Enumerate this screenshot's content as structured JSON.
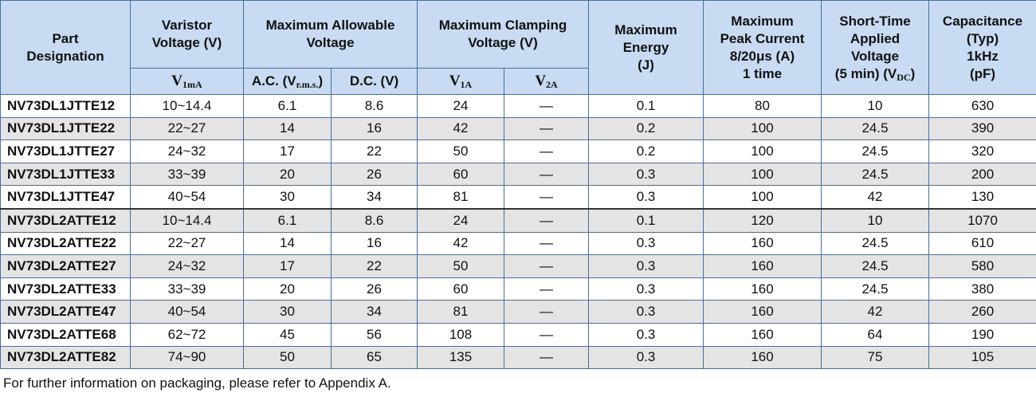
{
  "table": {
    "headers": [
      {
        "lines": [
          "Part",
          "Designation"
        ]
      },
      {
        "lines": [
          "Varistor",
          "Voltage (V)"
        ]
      },
      {
        "lines": [
          "Maximum Allowable",
          "Voltage"
        ]
      },
      {
        "lines": [
          "Maximum Clamping",
          "Voltage (V)"
        ]
      },
      {
        "lines": [
          "Maximum",
          "Energy",
          "(J)"
        ]
      },
      {
        "lines": [
          "Maximum",
          "Peak Current",
          "8/20μs (A)",
          "1 time"
        ]
      },
      {
        "lines": [
          "Short-Time",
          "Applied",
          "Voltage",
          {
            "text": "(5 min) (V",
            "sub": "DC",
            "after": ")"
          }
        ]
      },
      {
        "lines": [
          "Capacitance",
          "(Typ)",
          "1kHz",
          "(pF)"
        ]
      }
    ],
    "subheaders": [
      {
        "text": "V",
        "sub": "1mA"
      },
      {
        "text": "A.C. (V",
        "sub": "r.m.s.",
        "after": ")"
      },
      {
        "text": "D.C. (V)"
      },
      {
        "text": "V",
        "sub": "1A"
      },
      {
        "text": "V",
        "sub": "2A"
      }
    ],
    "row_groups": [
      [
        [
          "NV73DL1JTTE12",
          "10~14.4",
          "6.1",
          "8.6",
          "24",
          "—",
          "0.1",
          "80",
          "10",
          "630"
        ],
        [
          "NV73DL1JTTE22",
          "22~27",
          "14",
          "16",
          "42",
          "—",
          "0.2",
          "100",
          "24.5",
          "390"
        ],
        [
          "NV73DL1JTTE27",
          "24~32",
          "17",
          "22",
          "50",
          "—",
          "0.2",
          "100",
          "24.5",
          "320"
        ],
        [
          "NV73DL1JTTE33",
          "33~39",
          "20",
          "26",
          "60",
          "—",
          "0.3",
          "100",
          "24.5",
          "200"
        ],
        [
          "NV73DL1JTTE47",
          "40~54",
          "30",
          "34",
          "81",
          "—",
          "0.3",
          "100",
          "42",
          "130"
        ]
      ],
      [
        [
          "NV73DL2ATTE12",
          "10~14.4",
          "6.1",
          "8.6",
          "24",
          "—",
          "0.1",
          "120",
          "10",
          "1070"
        ],
        [
          "NV73DL2ATTE22",
          "22~27",
          "14",
          "16",
          "42",
          "—",
          "0.3",
          "160",
          "24.5",
          "610"
        ],
        [
          "NV73DL2ATTE27",
          "24~32",
          "17",
          "22",
          "50",
          "—",
          "0.3",
          "160",
          "24.5",
          "580"
        ],
        [
          "NV73DL2ATTE33",
          "33~39",
          "20",
          "26",
          "60",
          "—",
          "0.3",
          "160",
          "24.5",
          "380"
        ],
        [
          "NV73DL2ATTE47",
          "40~54",
          "30",
          "34",
          "81",
          "—",
          "0.3",
          "160",
          "42",
          "260"
        ],
        [
          "NV73DL2ATTE68",
          "62~72",
          "45",
          "56",
          "108",
          "—",
          "0.3",
          "160",
          "64",
          "190"
        ],
        [
          "NV73DL2ATTE82",
          "74~90",
          "50",
          "65",
          "135",
          "—",
          "0.3",
          "160",
          "75",
          "105"
        ]
      ]
    ],
    "footnote": "For further information on packaging, please refer to Appendix A."
  }
}
